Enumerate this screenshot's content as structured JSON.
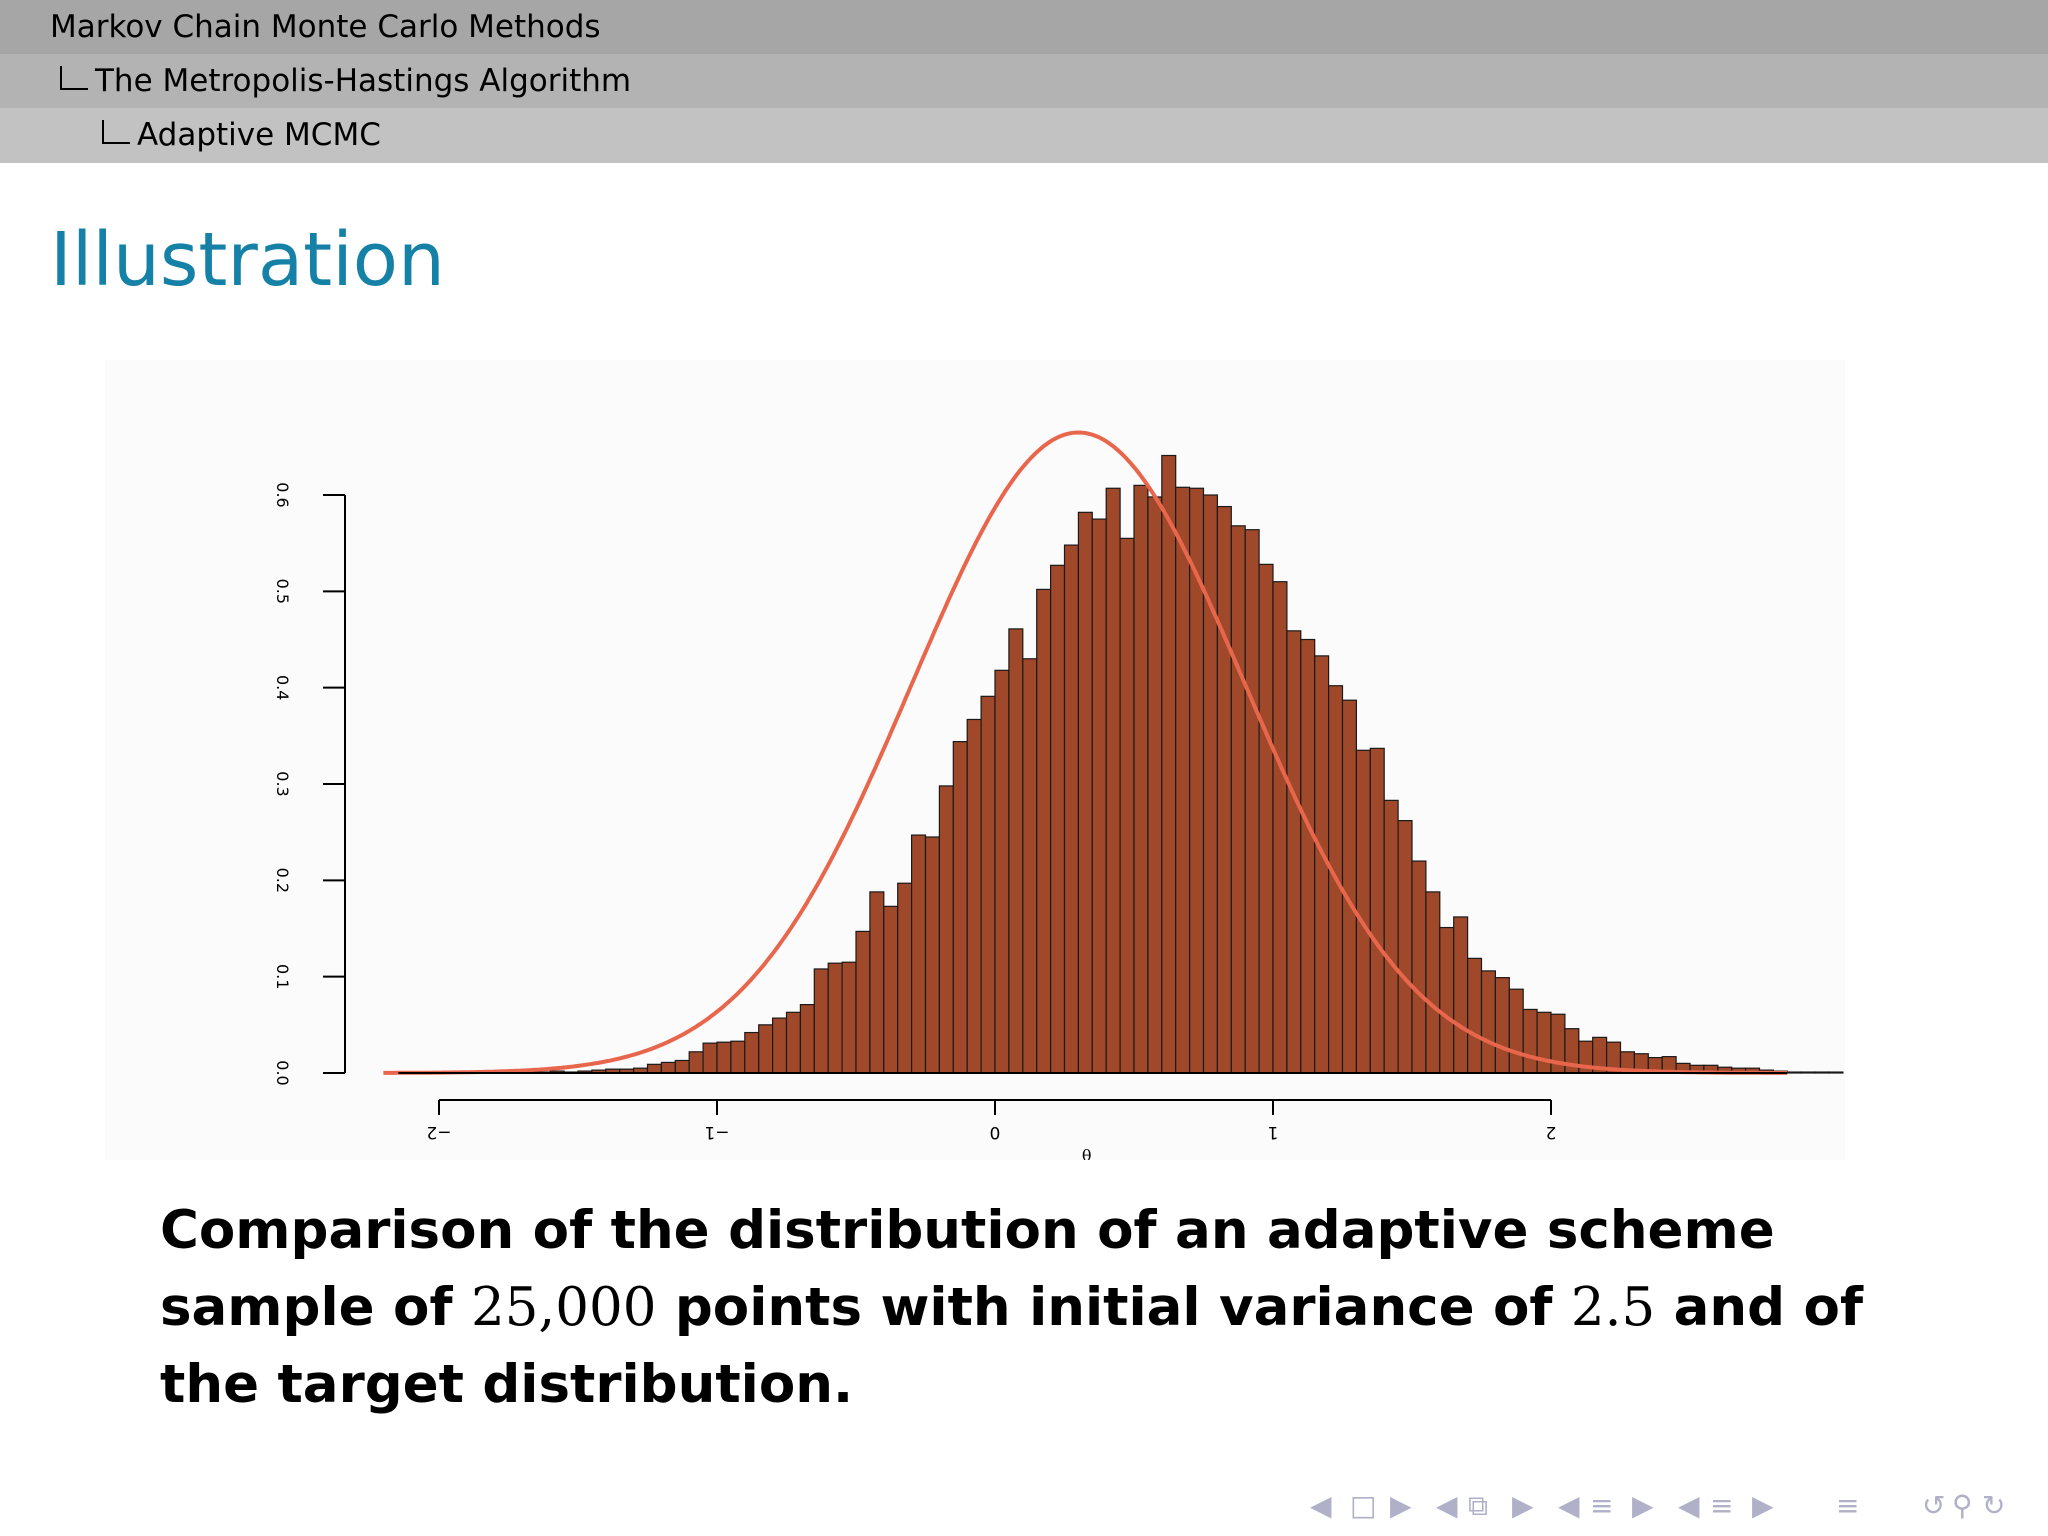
{
  "header": {
    "section": "Markov Chain Monte Carlo Methods",
    "subsection": "The Metropolis-Hastings Algorithm",
    "subsubsection": "Adaptive MCMC"
  },
  "slide": {
    "title": "Illustration",
    "caption": {
      "part1": "Comparison of the distribution of an adaptive scheme sample of ",
      "n_points": "25,000",
      "part2": " points with initial variance of ",
      "variance": "2.5",
      "part3": " and of the target distribution."
    }
  },
  "colors": {
    "title": "#1681a6",
    "bars": "#a0482a",
    "curve": "#e8664c"
  },
  "navigation_icons": [
    "left-arrow-icon",
    "frame-icon",
    "right-arrow-icon",
    "left-arrow-icon",
    "subsection-icon",
    "right-arrow-icon",
    "left-arrow-icon",
    "section-icon",
    "right-arrow-icon",
    "left-arrow-icon",
    "document-icon",
    "right-arrow-icon",
    "align-icon",
    "undo-icon",
    "search-icon",
    "redo-icon"
  ],
  "chart_data": {
    "type": "bar",
    "xlabel": "θ",
    "ylabel": "",
    "title": "",
    "xlim": [
      -2.2,
      2.85
    ],
    "ylim": [
      0,
      0.6
    ],
    "x_ticks": [
      -2,
      -1,
      0,
      1,
      2
    ],
    "x_tick_labels": [
      "−2",
      "−1",
      "0",
      "1",
      "2"
    ],
    "y_ticks": [
      0,
      0.1,
      0.2,
      0.3,
      0.4,
      0.5,
      0.6
    ],
    "y_tick_labels": [
      "0.0",
      "0.1",
      "0.2",
      "0.3",
      "0.4",
      "0.5",
      "0.6"
    ],
    "bin_start": -2.0,
    "bin_width": 0.05,
    "histogram_values": [
      0.001,
      0.001,
      0.001,
      0.001,
      0.001,
      0.001,
      0.001,
      0.001,
      0.002,
      0.001,
      0.002,
      0.003,
      0.004,
      0.004,
      0.005,
      0.009,
      0.011,
      0.013,
      0.022,
      0.031,
      0.032,
      0.033,
      0.042,
      0.05,
      0.057,
      0.063,
      0.071,
      0.108,
      0.114,
      0.115,
      0.147,
      0.188,
      0.173,
      0.197,
      0.247,
      0.245,
      0.298,
      0.344,
      0.367,
      0.391,
      0.418,
      0.461,
      0.43,
      0.502,
      0.527,
      0.548,
      0.582,
      0.575,
      0.607,
      0.555,
      0.61,
      0.598,
      0.641,
      0.608,
      0.607,
      0.6,
      0.588,
      0.568,
      0.564,
      0.528,
      0.51,
      0.459,
      0.45,
      0.433,
      0.402,
      0.387,
      0.335,
      0.337,
      0.283,
      0.262,
      0.22,
      0.188,
      0.151,
      0.162,
      0.119,
      0.106,
      0.099,
      0.087,
      0.066,
      0.063,
      0.061,
      0.046,
      0.033,
      0.037,
      0.032,
      0.022,
      0.02,
      0.016,
      0.017,
      0.01,
      0.008,
      0.008,
      0.006,
      0.005,
      0.005,
      0.003,
      0.002,
      0.001,
      0.001,
      0.001,
      0.001
    ],
    "target_curve": {
      "distribution": "normal",
      "mean": 0.3,
      "sd": 0.6
    }
  }
}
